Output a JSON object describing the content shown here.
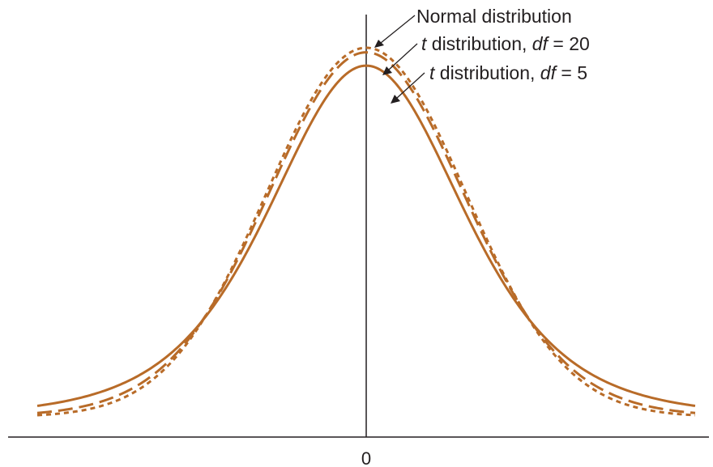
{
  "chart_data": {
    "type": "line",
    "title": "",
    "xlabel": "",
    "ylabel": "",
    "x_tick_labels": [
      "0"
    ],
    "grid": false,
    "series": [
      {
        "name": "Normal distribution",
        "df": null,
        "line_style": "dotted",
        "color": "#b86b28",
        "annotation": {
          "prefix": "",
          "dist_name": "Normal distribution",
          "df_symbol": "",
          "equals": "",
          "df_value": ""
        }
      },
      {
        "name": "t distribution, df = 20",
        "df": 20,
        "line_style": "dashed",
        "color": "#b86b28",
        "annotation": {
          "prefix": "t",
          "dist_name": " distribution, ",
          "df_symbol": "df",
          "equals": " = ",
          "df_value": "20"
        }
      },
      {
        "name": "t distribution, df = 5",
        "df": 5,
        "line_style": "solid",
        "color": "#b86b28",
        "annotation": {
          "prefix": "t",
          "dist_name": " distribution, ",
          "df_symbol": "df",
          "equals": " = ",
          "df_value": "5"
        }
      }
    ],
    "axis_color": "#231f20"
  }
}
